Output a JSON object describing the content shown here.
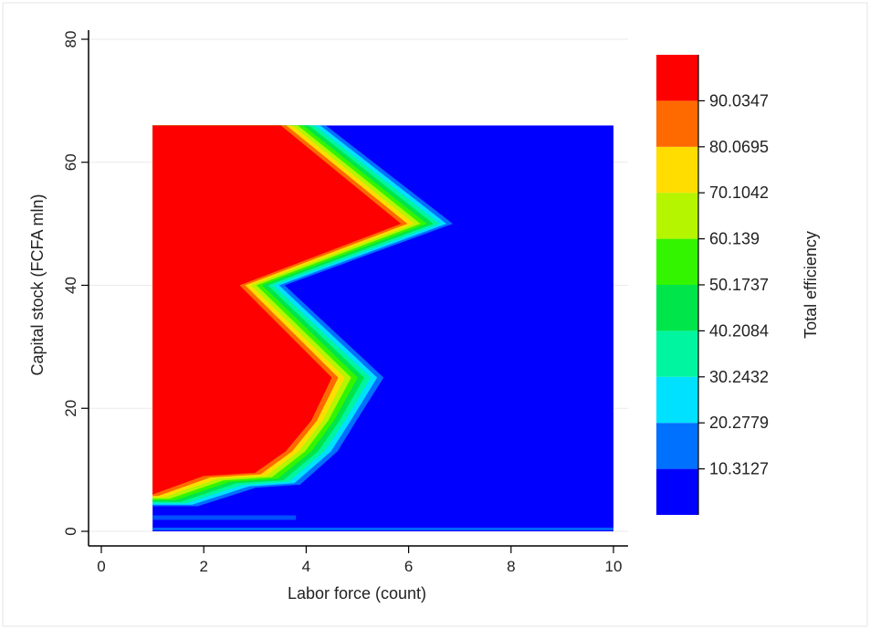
{
  "chart_data": {
    "type": "contour",
    "xlabel": "Labor force (count)",
    "ylabel": "Capital stock (FCFA mln)",
    "xlim": [
      0,
      10
    ],
    "ylim": [
      0,
      80
    ],
    "x_ticks": [
      0,
      2,
      4,
      6,
      8,
      10
    ],
    "y_ticks": [
      0,
      20,
      40,
      60,
      80
    ],
    "data_extent": {
      "x": [
        1,
        10
      ],
      "y": [
        0,
        66
      ]
    },
    "colorbar": {
      "title": "Total efficiency",
      "placement": "right",
      "range": [
        0.347,
        100
      ],
      "tick_values": [
        "10.3127",
        "20.2779",
        "30.2432",
        "40.2084",
        "50.1737",
        "60.139",
        "70.1042",
        "80.0695",
        "90.0347"
      ],
      "bands": [
        {
          "from": 0.347,
          "to": 10.3127,
          "color": "#0000ff"
        },
        {
          "from": 10.3127,
          "to": 20.2779,
          "color": "#0070ff"
        },
        {
          "from": 20.2779,
          "to": 30.2432,
          "color": "#00e1ff"
        },
        {
          "from": 30.2432,
          "to": 40.2084,
          "color": "#00f5a0"
        },
        {
          "from": 40.2084,
          "to": 50.1737,
          "color": "#00e54a"
        },
        {
          "from": 50.1737,
          "to": 60.139,
          "color": "#33f500"
        },
        {
          "from": 60.139,
          "to": 70.1042,
          "color": "#b5f500"
        },
        {
          "from": 70.1042,
          "to": 80.0695,
          "color": "#ffdd00"
        },
        {
          "from": 80.0695,
          "to": 90.0347,
          "color": "#ff6a00"
        },
        {
          "from": 90.0347,
          "to": 100,
          "color": "#ff0000"
        }
      ]
    },
    "frontier": {
      "description_values": "approximate efficiency-100 boundary (x,y) in data units",
      "points": [
        [
          3.5,
          66
        ],
        [
          5.85,
          50
        ],
        [
          2.7,
          40
        ],
        [
          4.5,
          25
        ],
        [
          4.1,
          18
        ],
        [
          3.6,
          13
        ],
        [
          3.0,
          9.5
        ],
        [
          2.0,
          9
        ],
        [
          1.0,
          6
        ]
      ],
      "band_step": [
        0.11,
        0.15
      ]
    }
  }
}
